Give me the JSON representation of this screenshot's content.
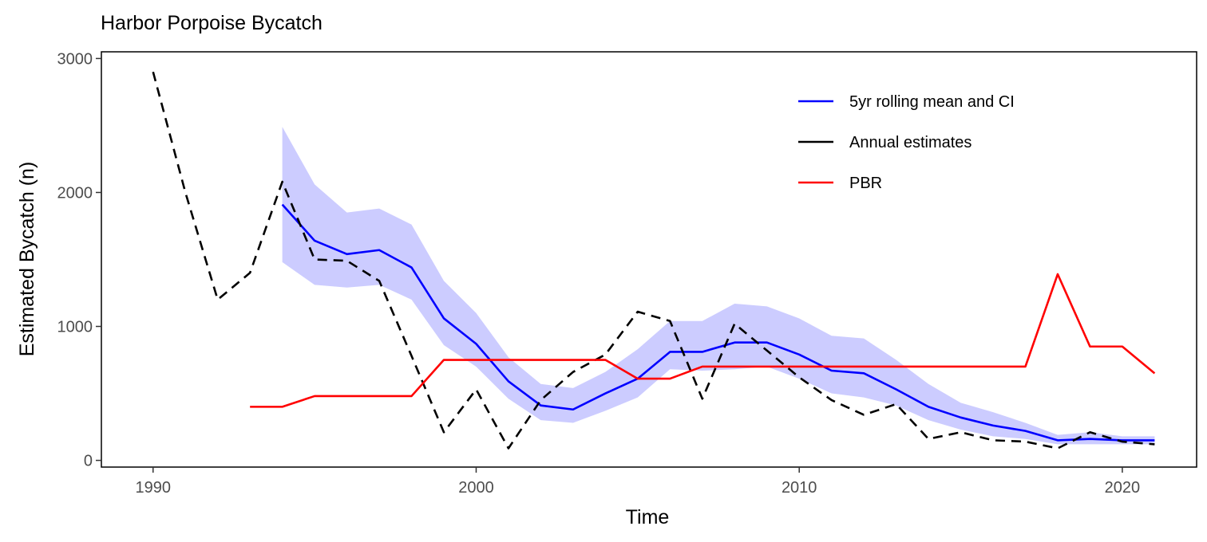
{
  "chart_data": {
    "type": "line",
    "title": "Harbor Porpoise Bycatch",
    "xlabel": "Time",
    "ylabel": "Estimated Bycatch (n)",
    "xlim": [
      1988.4,
      2022.3
    ],
    "ylim": [
      -50,
      3050
    ],
    "x_ticks": [
      1990,
      2000,
      2010,
      2020
    ],
    "y_ticks": [
      0,
      1000,
      2000,
      3000
    ],
    "grid": false,
    "legend_position": "top-right",
    "legend": [
      {
        "label": "5yr rolling mean and CI",
        "color": "#0000ff",
        "dash": "solid"
      },
      {
        "label": "Annual estimates",
        "color": "#000000",
        "dash": "solid"
      },
      {
        "label": "PBR",
        "color": "#ff0000",
        "dash": "solid"
      }
    ],
    "series": [
      {
        "name": "5yr rolling mean and CI",
        "kind": "line_with_band",
        "color": "#0000ff",
        "band_color": "#ccccff",
        "x": [
          1994,
          1995,
          1996,
          1997,
          1998,
          1999,
          2000,
          2001,
          2002,
          2003,
          2004,
          2005,
          2006,
          2007,
          2008,
          2009,
          2010,
          2011,
          2012,
          2013,
          2014,
          2015,
          2016,
          2017,
          2018,
          2019,
          2020,
          2021
        ],
        "values": [
          1910,
          1640,
          1540,
          1570,
          1440,
          1060,
          870,
          590,
          410,
          380,
          500,
          610,
          810,
          810,
          880,
          880,
          790,
          670,
          650,
          530,
          400,
          320,
          260,
          220,
          150,
          160,
          150,
          150
        ],
        "lower": [
          1480,
          1310,
          1290,
          1310,
          1200,
          860,
          700,
          460,
          300,
          280,
          370,
          470,
          680,
          670,
          680,
          700,
          610,
          500,
          470,
          410,
          300,
          230,
          180,
          160,
          120,
          120,
          120,
          120
        ],
        "upper": [
          2490,
          2060,
          1850,
          1880,
          1760,
          1340,
          1100,
          770,
          570,
          540,
          660,
          830,
          1040,
          1040,
          1170,
          1150,
          1060,
          930,
          910,
          750,
          570,
          430,
          360,
          280,
          190,
          210,
          180,
          180
        ]
      },
      {
        "name": "Annual estimates",
        "kind": "line",
        "color": "#000000",
        "dash": "dashed",
        "x": [
          1990,
          1991,
          1992,
          1993,
          1994,
          1995,
          1996,
          1997,
          1998,
          1999,
          2000,
          2001,
          2002,
          2003,
          2004,
          2005,
          2006,
          2007,
          2008,
          2009,
          2010,
          2011,
          2012,
          2013,
          2014,
          2015,
          2016,
          2017,
          2018,
          2019,
          2020,
          2021
        ],
        "values": [
          2900,
          2000,
          1200,
          1400,
          2080,
          1500,
          1490,
          1340,
          780,
          210,
          530,
          90,
          450,
          660,
          790,
          1110,
          1040,
          460,
          1020,
          820,
          620,
          450,
          340,
          420,
          160,
          210,
          150,
          140,
          90,
          210,
          140,
          120
        ]
      },
      {
        "name": "PBR",
        "kind": "step",
        "color": "#ff0000",
        "x": [
          1993,
          1994,
          1995,
          1996,
          1997,
          1998,
          1999,
          2000,
          2001,
          2002,
          2003,
          2004,
          2005,
          2006,
          2007,
          2008,
          2009,
          2010,
          2011,
          2012,
          2013,
          2014,
          2015,
          2016,
          2017,
          2018,
          2019,
          2020,
          2021
        ],
        "values": [
          400,
          400,
          480,
          480,
          480,
          480,
          750,
          750,
          750,
          750,
          750,
          750,
          610,
          610,
          700,
          700,
          700,
          700,
          700,
          700,
          700,
          700,
          700,
          700,
          700,
          1390,
          850,
          850,
          650
        ]
      }
    ]
  }
}
